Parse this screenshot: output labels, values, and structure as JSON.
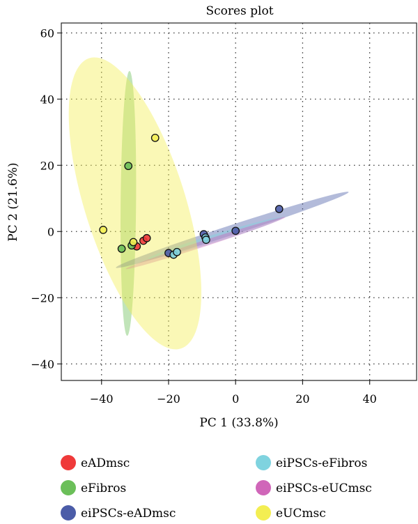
{
  "chart_data": {
    "type": "scatter",
    "title": "Scores plot",
    "xlabel": "PC 1 (33.8%)",
    "ylabel": "PC 2 (21.6%)",
    "xlim": [
      -52,
      54
    ],
    "ylim": [
      -45,
      63
    ],
    "xticks": [
      -40,
      -20,
      0,
      20,
      40
    ],
    "yticks": [
      -40,
      -20,
      0,
      20,
      40,
      60
    ],
    "xtick_labels": [
      "−40",
      "−20",
      "0",
      "20",
      "40"
    ],
    "ytick_labels": [
      "−40",
      "−20",
      "0",
      "20",
      "40",
      "60"
    ],
    "grid": true,
    "legend_position": "bottom",
    "series": [
      {
        "name": "eADmsc",
        "color": "#ef3a3a",
        "points": [
          [
            -29.5,
            -4.5
          ],
          [
            -27.5,
            -2.8
          ],
          [
            -26.5,
            -2.0
          ]
        ]
      },
      {
        "name": "eFibros",
        "color": "#6bbf59",
        "points": [
          [
            -34.0,
            -5.2
          ],
          [
            -32.0,
            19.8
          ],
          [
            -31.0,
            -4.2
          ]
        ],
        "ellipse": {
          "cx": -32.0,
          "cy": 8.5,
          "rx": 2.3,
          "ry": 40.0,
          "angle": -0.5
        }
      },
      {
        "name": "eiPSCs-eADmsc",
        "color": "#4b5ca8",
        "points": [
          [
            -20.0,
            -6.5
          ],
          [
            -9.5,
            -0.8
          ],
          [
            0.0,
            0.2
          ],
          [
            13.0,
            6.8
          ]
        ],
        "ellipse": {
          "cx": -1.0,
          "cy": 0.5,
          "rx": 36.5,
          "ry": 1.5,
          "angle": 18.0
        }
      },
      {
        "name": "eiPSCs-eFibros",
        "color": "#7fd3df",
        "points": [
          [
            -18.5,
            -7.0
          ],
          [
            -17.5,
            -6.2
          ],
          [
            -9.0,
            -1.8
          ],
          [
            -8.8,
            -2.5
          ]
        ],
        "ellipse": {
          "cx": -6.0,
          "cy": -2.0,
          "rx": 21.0,
          "ry": 1.2,
          "angle": 17.0
        }
      },
      {
        "name": "eiPSCs-eUCmsc",
        "color": "#d066b9",
        "points": [],
        "ellipse": {
          "cx": -9.0,
          "cy": -3.5,
          "rx": 25.0,
          "ry": 0.9,
          "angle": 18.0
        }
      },
      {
        "name": "eUCmsc",
        "color": "#f3ee52",
        "points": [
          [
            -39.5,
            0.5
          ],
          [
            -30.5,
            -3.2
          ],
          [
            -24.0,
            28.3
          ]
        ],
        "ellipse": {
          "cx": -30.0,
          "cy": 8.5,
          "rx": 15.0,
          "ry": 46.0,
          "angle": 17.5
        }
      }
    ]
  }
}
